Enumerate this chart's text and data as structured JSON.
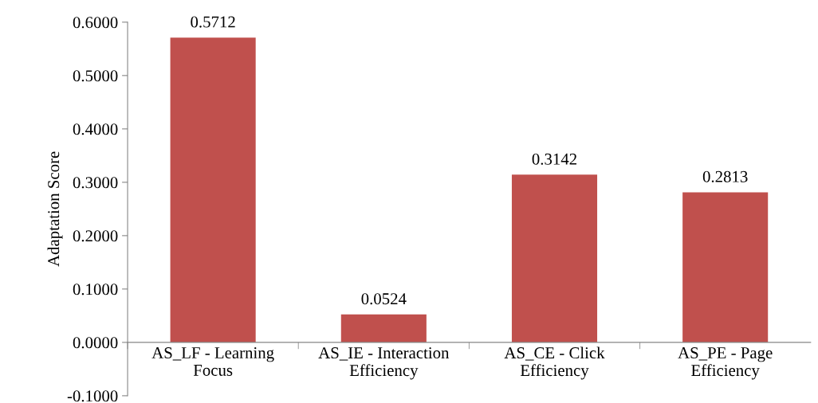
{
  "chart_data": {
    "type": "bar",
    "ylabel": "Adaptation Score",
    "categories": [
      "AS_LF - Learning\nFocus",
      "AS_IE - Interaction\nEfficiency",
      "AS_CE - Click\nEfficiency",
      "AS_PE - Page\nEfficiency"
    ],
    "values": [
      0.5712,
      0.0524,
      0.3142,
      0.2813
    ],
    "color": "#c0504d",
    "data_labels": true,
    "value_labels": [
      "0.5712",
      "0.0524",
      "0.3142",
      "0.2813"
    ],
    "ylim": [
      -0.1,
      0.6
    ],
    "yticks": [
      {
        "value": -0.1,
        "label": "-0.1000"
      },
      {
        "value": 0,
        "label": "0.0000"
      },
      {
        "value": 0.1,
        "label": "0.1000"
      },
      {
        "value": 0.2,
        "label": "0.2000"
      },
      {
        "value": 0.3,
        "label": "0.3000"
      },
      {
        "value": 0.4,
        "label": "0.4000"
      },
      {
        "value": 0.5,
        "label": "0.5000"
      },
      {
        "value": 0.6,
        "label": "0.6000"
      }
    ],
    "grid": false,
    "legend": false
  }
}
